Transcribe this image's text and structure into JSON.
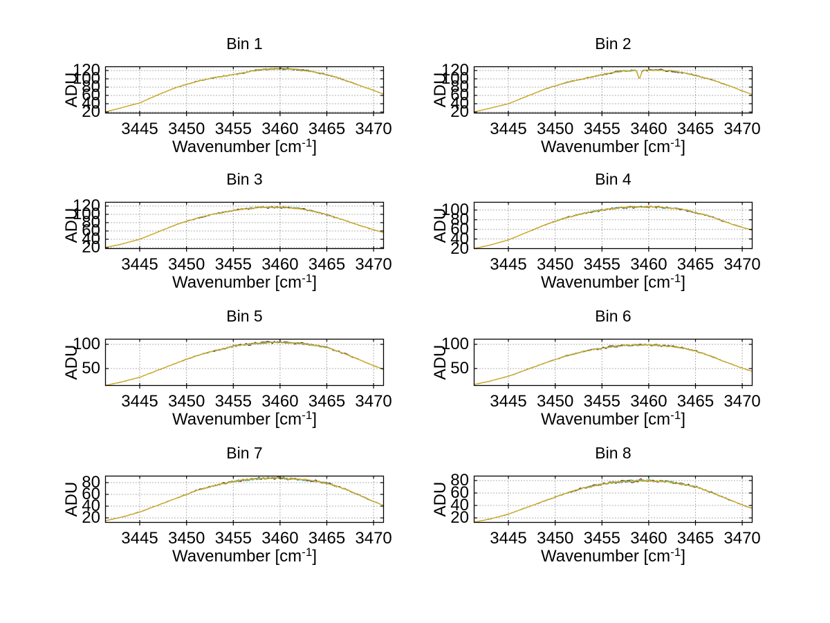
{
  "figure": {
    "background": "#ffffff",
    "axis_color": "#000000",
    "grid_color": "#606060",
    "tick_label_color": "#000000"
  },
  "chart_data": {
    "type": "line",
    "layout": "8 subplots in 4 rows x 2 columns, grid on (dotted), box on",
    "xlabel": {
      "prefix": "Wavenumber [cm",
      "sup": "-1",
      "suffix": "]"
    },
    "ylabel": "ADU",
    "xlim": [
      3441.3,
      3471.1
    ],
    "xticks": [
      3445,
      3450,
      3455,
      3460,
      3465,
      3470
    ],
    "x_anchors": [
      3441.3,
      3443,
      3445,
      3447,
      3449,
      3451,
      3453,
      3455,
      3456,
      3457,
      3458,
      3459,
      3460,
      3461,
      3462,
      3463,
      3464,
      3465,
      3466,
      3467,
      3468,
      3469,
      3470,
      3471.1
    ],
    "traces": [
      {
        "name": "overlay-dark",
        "color": "#4a2352",
        "width": 1.1,
        "amp": 2.6,
        "seed": 7
      },
      {
        "name": "overlay-teal",
        "color": "#2f9e8e",
        "width": 1.0,
        "amp": 2.1,
        "seed": 13
      },
      {
        "name": "overlay-green",
        "color": "#7ba32c",
        "width": 1.0,
        "amp": 1.9,
        "seed": 21
      },
      {
        "name": "main-yellow",
        "color": "#d9ad24",
        "width": 1.3,
        "amp": 1.5,
        "seed": 3
      }
    ],
    "subplots": [
      {
        "title": "Bin 1",
        "yticks": [
          120,
          100,
          80,
          60,
          40,
          20
        ],
        "ylim": [
          16.7,
          130
        ],
        "y": [
          20,
          30,
          42,
          62,
          80,
          93,
          103,
          110,
          114,
          119,
          122,
          124,
          124,
          124,
          122,
          119,
          115,
          110,
          104,
          96,
          88,
          80,
          72,
          63
        ]
      },
      {
        "title": "Bin 2",
        "yticks": [
          120,
          100,
          80,
          60,
          40,
          20
        ],
        "ylim": [
          16.7,
          130
        ],
        "y": [
          20,
          29,
          40,
          58,
          76,
          90,
          100,
          110,
          114,
          118,
          120,
          120,
          121,
          121,
          120,
          117,
          113,
          108,
          102,
          96,
          88,
          80,
          71,
          62
        ],
        "spike": {
          "x": 3459,
          "depth": 19,
          "width": 0.22
        }
      },
      {
        "title": "Bin 3",
        "yticks": [
          120,
          100,
          80,
          60,
          40,
          20
        ],
        "ylim": [
          16.7,
          130
        ],
        "y": [
          20,
          28,
          40,
          58,
          76,
          90,
          101,
          109,
          113,
          115,
          117,
          117,
          117,
          116,
          114,
          110,
          105,
          99,
          92,
          85,
          77,
          70,
          63,
          56
        ]
      },
      {
        "title": "Bin 4",
        "yticks": [
          100,
          80,
          60,
          40,
          20
        ],
        "ylim": [
          19.3,
          117
        ],
        "y": [
          20,
          27,
          38,
          54,
          70,
          83,
          93,
          100,
          103,
          105,
          106,
          107,
          107,
          106,
          105,
          103,
          100,
          95,
          90,
          84,
          77,
          70,
          64,
          58
        ]
      },
      {
        "title": "Bin 5",
        "yticks": [
          100,
          50
        ],
        "ylim": [
          14.3,
          111.4
        ],
        "y": [
          15,
          22,
          32,
          47,
          62,
          76,
          87,
          96,
          99,
          101,
          103,
          104,
          104,
          103,
          102,
          100,
          97,
          93,
          87,
          80,
          72,
          64,
          56,
          48
        ]
      },
      {
        "title": "Bin 6",
        "yticks": [
          100,
          50
        ],
        "ylim": [
          14.3,
          111.4
        ],
        "y": [
          17,
          24,
          34,
          48,
          62,
          75,
          85,
          92,
          95,
          97,
          98,
          99,
          99,
          98,
          96,
          94,
          91,
          86,
          80,
          73,
          65,
          58,
          51,
          44
        ]
      },
      {
        "title": "Bin 7",
        "yticks": [
          80,
          60,
          40,
          20
        ],
        "ylim": [
          11.8,
          91.8
        ],
        "y": [
          15,
          21,
          30,
          42,
          54,
          66,
          75,
          82,
          84,
          86,
          87,
          88,
          88,
          87,
          86,
          84,
          82,
          79,
          74,
          69,
          62,
          55,
          48,
          41
        ]
      },
      {
        "title": "Bin 8",
        "yticks": [
          80,
          60,
          40,
          20
        ],
        "ylim": [
          12.2,
          87.8
        ],
        "y": [
          13,
          18,
          26,
          37,
          48,
          59,
          68,
          74,
          77,
          78,
          79,
          80,
          80,
          79,
          78,
          76,
          73,
          70,
          65,
          59,
          53,
          47,
          41,
          35
        ]
      }
    ]
  }
}
